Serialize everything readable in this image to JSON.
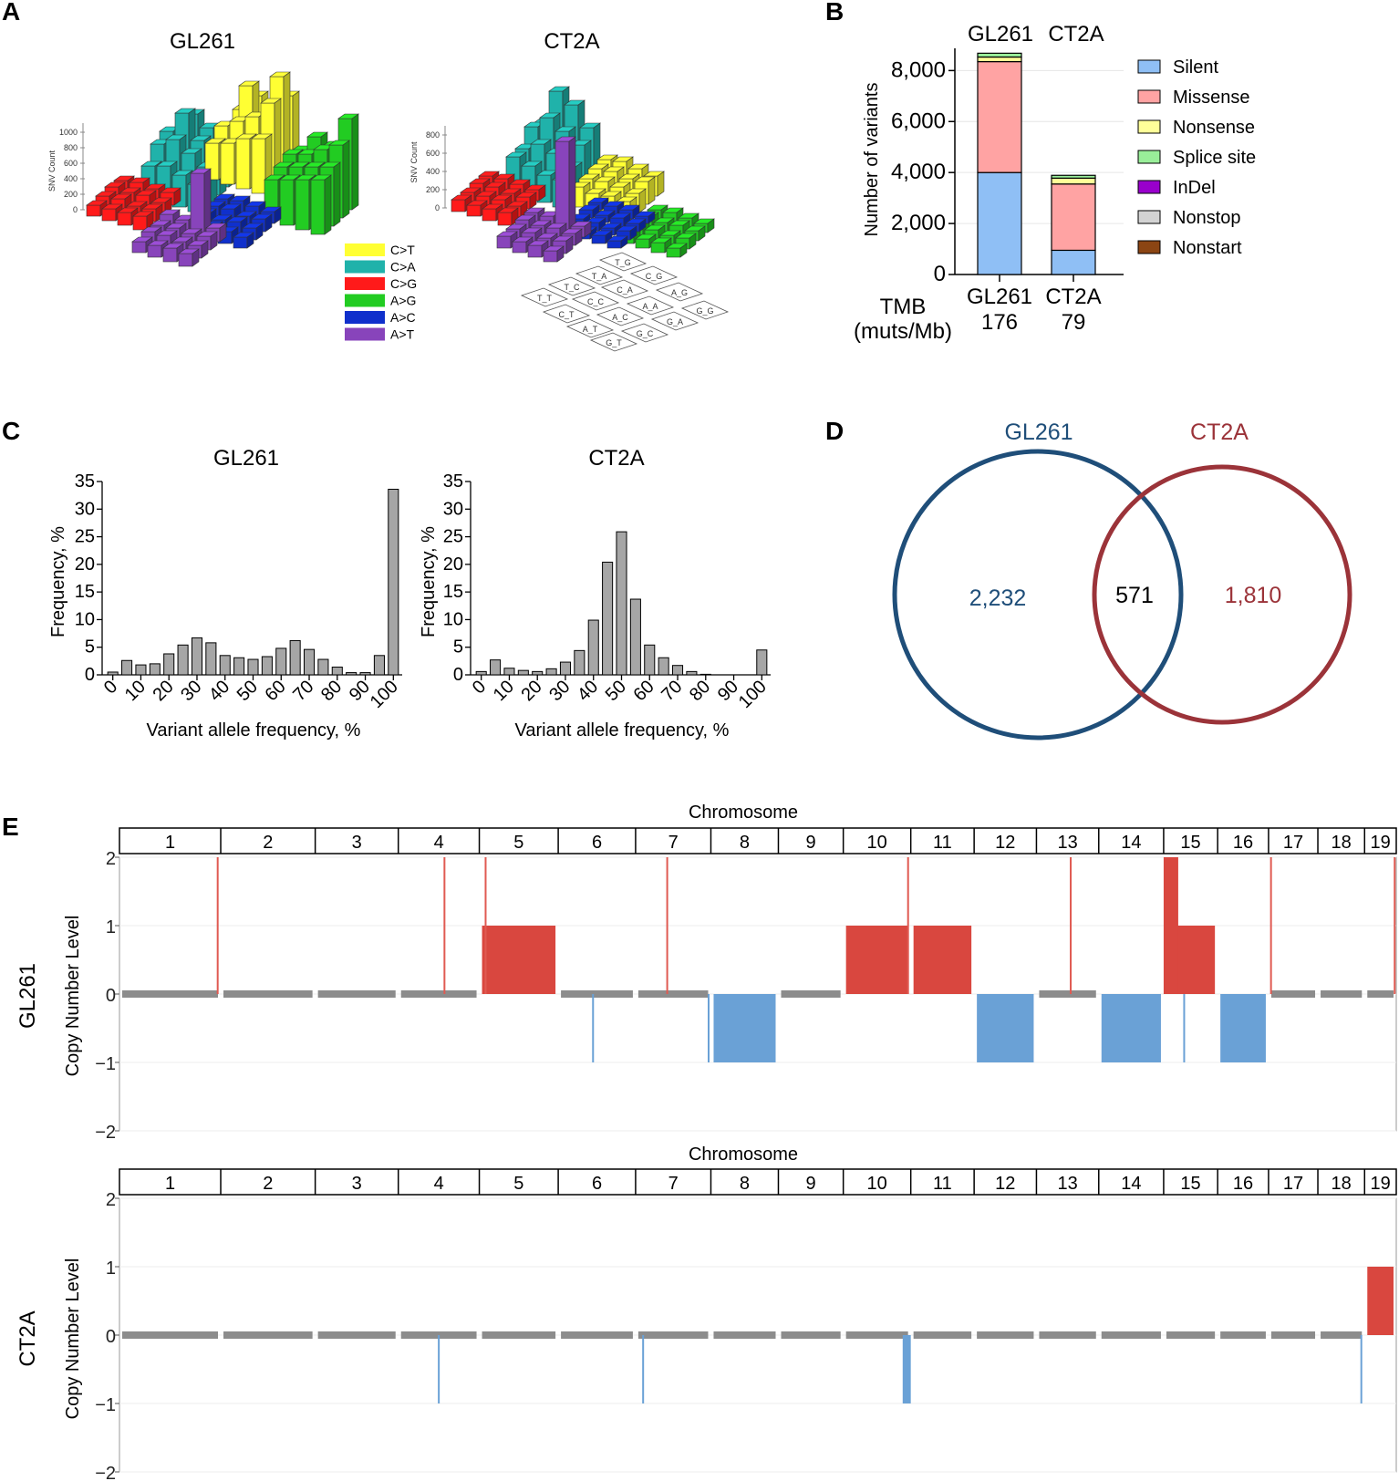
{
  "panels": {
    "a": "A",
    "b": "B",
    "c": "C",
    "d": "D",
    "e": "E"
  },
  "chart_data": [
    {
      "panel": "A",
      "type": "bar3d",
      "titles": [
        "GL261",
        "CT2A"
      ],
      "left_axis_ticks": [
        "0",
        "200",
        "400",
        "600",
        "800",
        "1000"
      ],
      "right_axis_ticks": [
        "0",
        "200",
        "400",
        "600",
        "800"
      ],
      "axis_label": "SNV Count",
      "legend": [
        {
          "label": "C>T",
          "color": "#ffff33"
        },
        {
          "label": "C>A",
          "color": "#20b2aa"
        },
        {
          "label": "C>G",
          "color": "#ff1a1a"
        },
        {
          "label": "A>G",
          "color": "#22cc22"
        },
        {
          "label": "A>C",
          "color": "#1030cc"
        },
        {
          "label": "A>T",
          "color": "#8844bb"
        }
      ],
      "context_grid": [
        "T_G",
        "T_A",
        "C_G",
        "T_C",
        "C_A",
        "A_G",
        "T_T",
        "C_C",
        "A_A",
        "G_G",
        "C_T",
        "A_C",
        "G_A",
        "A_T",
        "G_C",
        "G_T"
      ]
    },
    {
      "panel": "B",
      "type": "bar",
      "stacked": true,
      "categories": [
        "GL261",
        "CT2A"
      ],
      "ylabel": "Number of variants",
      "ylim": [
        0,
        8800
      ],
      "yticks": [
        "0",
        "2,000",
        "4,000",
        "6,000",
        "8,000"
      ],
      "tmb_label": [
        "TMB",
        "(muts/Mb)"
      ],
      "tmb_values": [
        "176",
        "79"
      ],
      "series": [
        {
          "name": "Silent",
          "color": "#8fbff5",
          "values": [
            4000,
            950
          ]
        },
        {
          "name": "Missense",
          "color": "#ffa3a3",
          "values": [
            4350,
            2600
          ]
        },
        {
          "name": "Nonsense",
          "color": "#ffff99",
          "values": [
            180,
            230
          ]
        },
        {
          "name": "Splice site",
          "color": "#99ee99",
          "values": [
            150,
            110
          ]
        },
        {
          "name": "InDel",
          "color": "#9900cc",
          "values": [
            0,
            0
          ]
        },
        {
          "name": "Nonstop",
          "color": "#d3d3d3",
          "values": [
            0,
            0
          ]
        },
        {
          "name": "Nonstart",
          "color": "#8b4513",
          "values": [
            0,
            0
          ]
        }
      ]
    },
    {
      "panel": "C",
      "type": "bar",
      "title": "GL261",
      "xlabel": "Variant allele frequency, %",
      "ylabel": "Frequency, %",
      "ylim": [
        0,
        35
      ],
      "yticks": [
        "0",
        "5",
        "10",
        "15",
        "20",
        "25",
        "30",
        "35"
      ],
      "xticks": [
        "0",
        "10",
        "20",
        "30",
        "40",
        "50",
        "60",
        "70",
        "80",
        "90",
        "100"
      ],
      "values": [
        0.5,
        2.6,
        1.8,
        2.0,
        3.8,
        5.4,
        6.7,
        5.8,
        3.5,
        3.1,
        2.8,
        3.3,
        4.8,
        6.2,
        4.6,
        2.8,
        1.4,
        0.4,
        0.4,
        3.5,
        33.6
      ]
    },
    {
      "panel": "C",
      "type": "bar",
      "title": "CT2A",
      "xlabel": "Variant allele frequency, %",
      "ylabel": "Frequency, %",
      "ylim": [
        0,
        35
      ],
      "yticks": [
        "0",
        "5",
        "10",
        "15",
        "20",
        "25",
        "30",
        "35"
      ],
      "xticks": [
        "0",
        "10",
        "20",
        "30",
        "40",
        "50",
        "60",
        "70",
        "80",
        "90",
        "100"
      ],
      "values": [
        0.6,
        2.7,
        1.2,
        0.8,
        0.6,
        1.1,
        2.3,
        4.4,
        9.9,
        20.4,
        25.9,
        13.7,
        5.4,
        3.1,
        1.7,
        0.6,
        0.1,
        0,
        0,
        0,
        4.5
      ]
    },
    {
      "panel": "D",
      "type": "venn",
      "sets": [
        {
          "name": "GL261",
          "color": "#1f4e79",
          "only": "2,232"
        },
        {
          "name": "CT2A",
          "color": "#9b3339",
          "only": "1,810"
        }
      ],
      "shared": "571"
    },
    {
      "panel": "E",
      "type": "copy_number",
      "header": "Chromosome",
      "ylabel": "Copy Number Level",
      "yticks": [
        "2",
        "1",
        "0",
        "−1",
        "−2"
      ],
      "ylim": [
        -2,
        2
      ],
      "chromosomes": [
        "1",
        "2",
        "3",
        "4",
        "5",
        "6",
        "7",
        "8",
        "9",
        "10",
        "11",
        "12",
        "13",
        "14",
        "15",
        "16",
        "17",
        "18",
        "19"
      ],
      "chrom_weights": [
        1.95,
        1.82,
        1.6,
        1.56,
        1.52,
        1.49,
        1.45,
        1.3,
        1.25,
        1.3,
        1.22,
        1.2,
        1.2,
        1.25,
        1.04,
        0.98,
        0.95,
        0.9,
        0.61
      ],
      "samples": [
        {
          "name": "GL261",
          "levels": [
            0,
            0,
            0,
            0,
            1,
            0,
            0,
            -1,
            0,
            1,
            1,
            -1,
            0,
            -1,
            1,
            -1,
            0,
            0,
            0
          ],
          "spikes": [
            {
              "chrom": 1,
              "pos": 0.97,
              "level": 2
            },
            {
              "chrom": 4,
              "pos": 0.57,
              "level": 2
            },
            {
              "chrom": 5,
              "pos": 0.08,
              "level": 2
            },
            {
              "chrom": 6,
              "pos": 0.45,
              "level": -1
            },
            {
              "chrom": 7,
              "pos": 0.42,
              "level": 2
            },
            {
              "chrom": 7,
              "pos": 0.97,
              "level": -1
            },
            {
              "chrom": 10,
              "pos": 0.96,
              "level": 2
            },
            {
              "chrom": 13,
              "pos": 0.55,
              "level": 2
            },
            {
              "chrom": 15,
              "pos": 0.38,
              "level": -1
            },
            {
              "chrom": 17,
              "pos": 0.05,
              "level": 2
            },
            {
              "chrom": 19,
              "pos": 0.95,
              "level": 2
            }
          ],
          "blocks": [
            {
              "chrom": 15,
              "start": 0.0,
              "end": 0.27,
              "level": 2
            }
          ]
        },
        {
          "name": "CT2A",
          "levels": [
            0,
            0,
            0,
            0,
            0,
            0,
            0,
            0,
            0,
            0,
            0,
            0,
            0,
            0,
            0,
            0,
            0,
            0,
            1
          ],
          "spikes": [
            {
              "chrom": 4,
              "pos": 0.5,
              "level": -1
            },
            {
              "chrom": 7,
              "pos": 0.1,
              "level": -1
            },
            {
              "chrom": 18,
              "pos": 0.93,
              "level": -1
            }
          ],
          "blocks": [
            {
              "chrom": 10,
              "start": 0.88,
              "end": 1.0,
              "level": -1
            }
          ]
        }
      ]
    }
  ]
}
